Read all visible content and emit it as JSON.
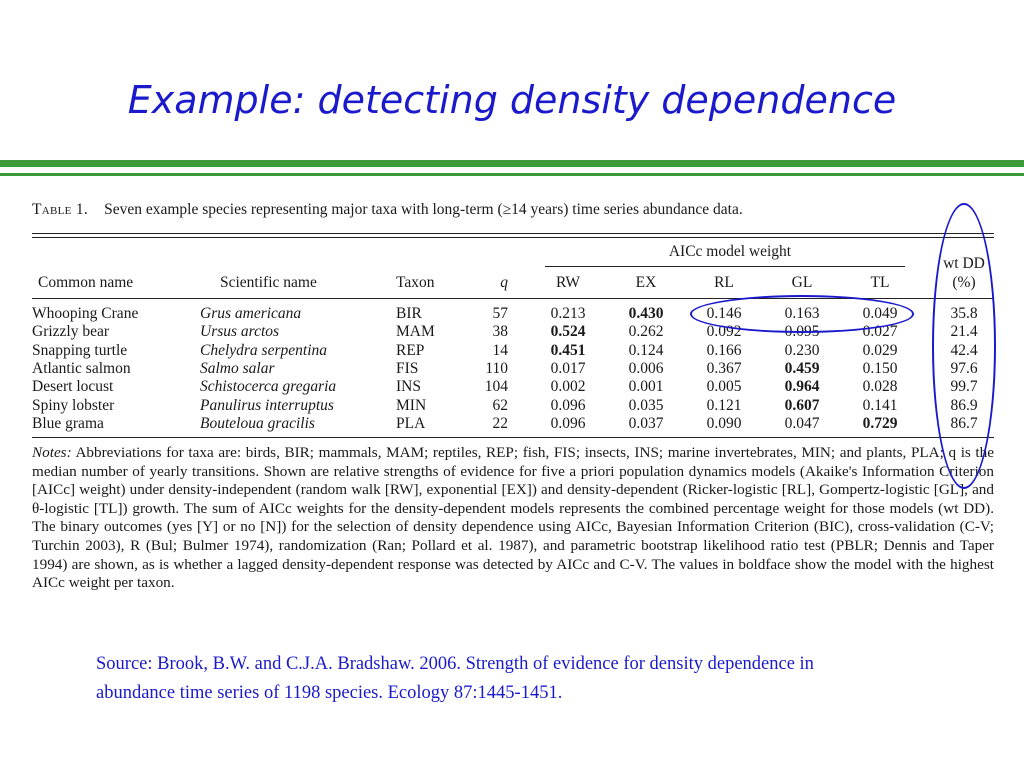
{
  "slide": {
    "title": "Example:  detecting density dependence"
  },
  "table": {
    "label": "Table 1.",
    "caption": "Seven example species representing major taxa with long-term (≥14 years) time series abundance data.",
    "aic_group": "AICc model weight",
    "headers": {
      "common": "Common name",
      "scientific": "Scientific name",
      "taxon": "Taxon",
      "q": "q",
      "rw": "RW",
      "ex": "EX",
      "rl": "RL",
      "gl": "GL",
      "tl": "TL",
      "wt1": "wt DD",
      "wt2": "(%)"
    },
    "rows": [
      {
        "common": "Whooping Crane",
        "scientific": "Grus americana",
        "taxon": "BIR",
        "q": "57",
        "rw": "0.213",
        "ex": "0.430",
        "rl": "0.146",
        "gl": "0.163",
        "tl": "0.049",
        "wt": "35.8",
        "bold": "ex"
      },
      {
        "common": "Grizzly bear",
        "scientific": "Ursus arctos",
        "taxon": "MAM",
        "q": "38",
        "rw": "0.524",
        "ex": "0.262",
        "rl": "0.092",
        "gl": "0.095",
        "tl": "0.027",
        "wt": "21.4",
        "bold": "rw"
      },
      {
        "common": "Snapping turtle",
        "scientific": "Chelydra serpentina",
        "taxon": "REP",
        "q": "14",
        "rw": "0.451",
        "ex": "0.124",
        "rl": "0.166",
        "gl": "0.230",
        "tl": "0.029",
        "wt": "42.4",
        "bold": "rw"
      },
      {
        "common": "Atlantic salmon",
        "scientific": "Salmo salar",
        "taxon": "FIS",
        "q": "110",
        "rw": "0.017",
        "ex": "0.006",
        "rl": "0.367",
        "gl": "0.459",
        "tl": "0.150",
        "wt": "97.6",
        "bold": "gl"
      },
      {
        "common": "Desert locust",
        "scientific": "Schistocerca gregaria",
        "taxon": "INS",
        "q": "104",
        "rw": "0.002",
        "ex": "0.001",
        "rl": "0.005",
        "gl": "0.964",
        "tl": "0.028",
        "wt": "99.7",
        "bold": "gl"
      },
      {
        "common": "Spiny lobster",
        "scientific": "Panulirus interruptus",
        "taxon": "MIN",
        "q": "62",
        "rw": "0.096",
        "ex": "0.035",
        "rl": "0.121",
        "gl": "0.607",
        "tl": "0.141",
        "wt": "86.9",
        "bold": "gl"
      },
      {
        "common": "Blue grama",
        "scientific": "Bouteloua gracilis",
        "taxon": "PLA",
        "q": "22",
        "rw": "0.096",
        "ex": "0.037",
        "rl": "0.090",
        "gl": "0.047",
        "tl": "0.729",
        "wt": "86.7",
        "bold": "tl"
      }
    ],
    "notes_label": "Notes:",
    "notes_text": "Abbreviations for taxa are: birds, BIR; mammals, MAM; reptiles, REP; fish, FIS; insects, INS; marine invertebrates, MIN; and plants, PLA; q is the median number of yearly transitions. Shown are relative strengths of evidence for five a priori population dynamics models (Akaike's Information Criterion [AICc] weight) under density-independent (random walk [RW], exponential [EX]) and density-dependent (Ricker-logistic [RL], Gompertz-logistic [GL], and θ-logistic [TL]) growth. The sum of AICc weights for the density-dependent models represents the combined percentage weight for those models (wt DD). The binary outcomes (yes [Y] or no [N]) for the selection of density dependence using AICc, Bayesian Information Criterion (BIC), cross-validation (C-V; Turchin 2003), R (Bul; Bulmer 1974), randomization (Ran; Pollard et al. 1987), and parametric bootstrap likelihood ratio test (PBLR; Dennis and Taper 1994) are shown, as is whether a lagged density-dependent response was detected by AICc and C-V. The values in boldface show the model with the highest AICc weight per taxon."
  },
  "source": "Source:  Brook, B.W. and C.J.A. Bradshaw.  2006.  Strength of evidence for density dependence in abundance time series of 1198 species.  Ecology 87:1445-1451.",
  "colors": {
    "title": "#1a1acc",
    "rules": "#3a9a3a",
    "annotation": "#1a1acc"
  }
}
